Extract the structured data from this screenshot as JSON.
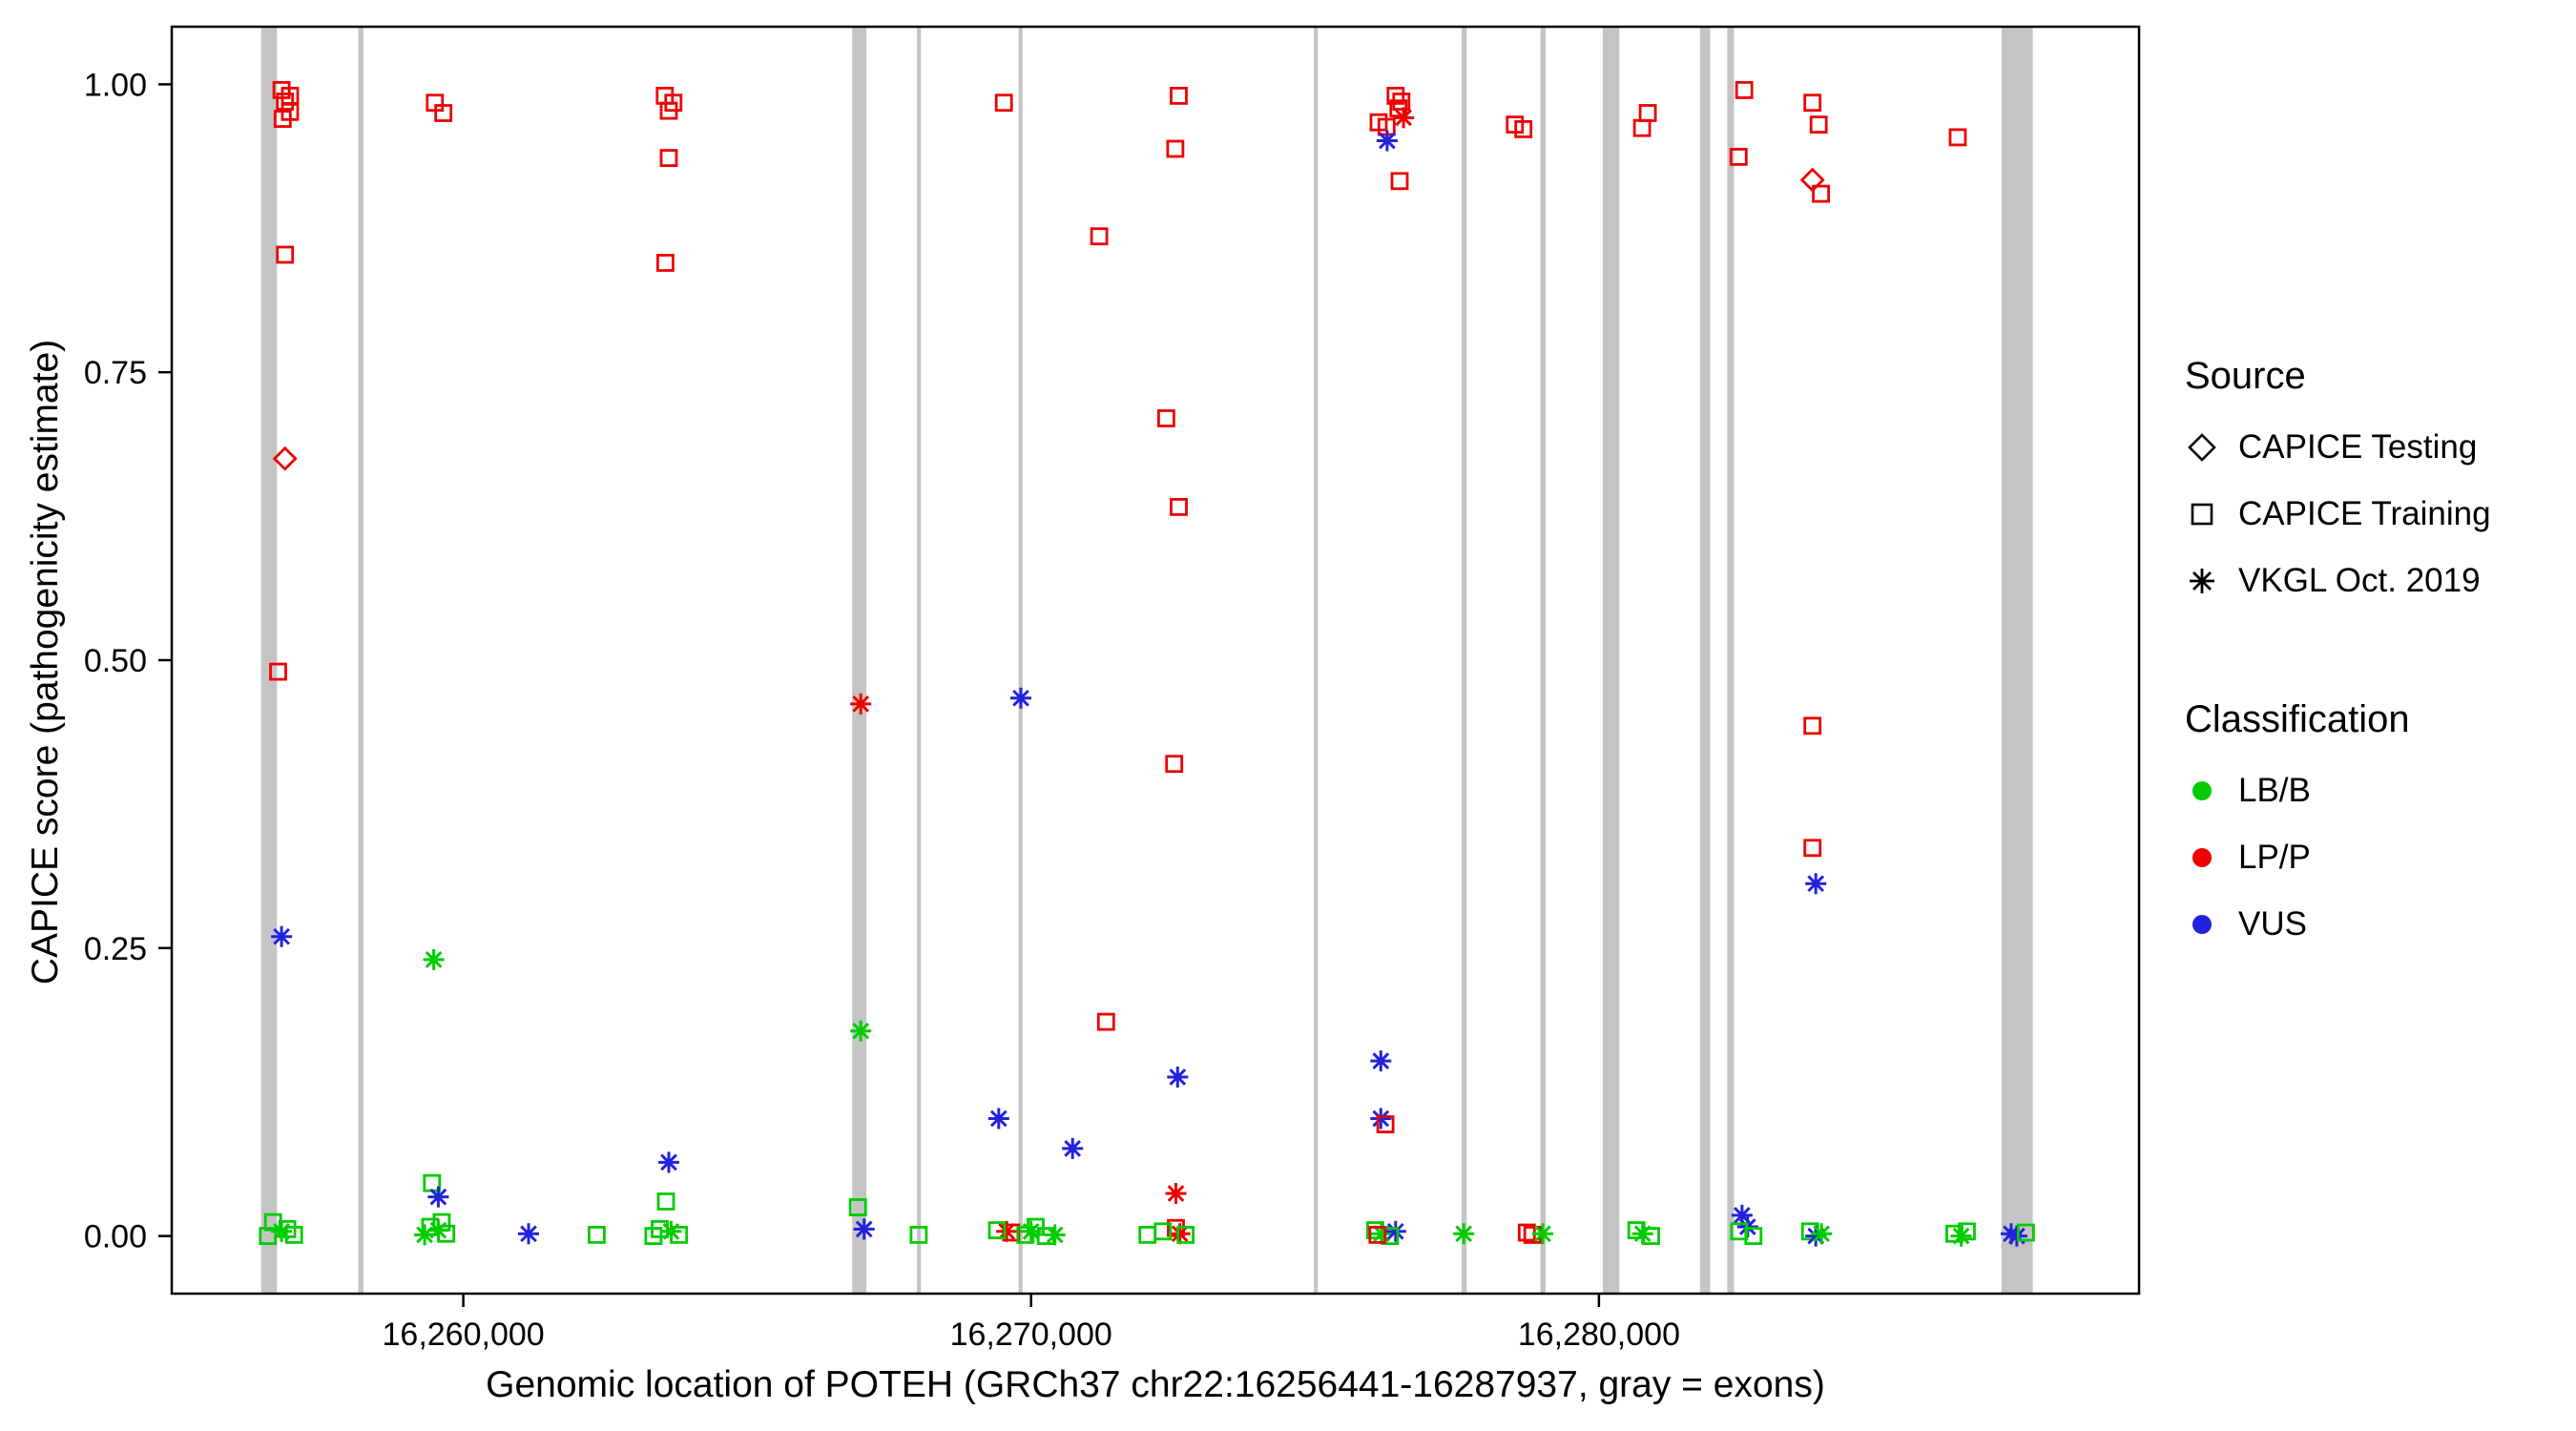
{
  "chart_data": {
    "type": "scatter",
    "title": "",
    "xlabel": "Genomic location of POTEH (GRCh37 chr22:16256441-16287937, gray = exons)",
    "ylabel": "CAPICE score (pathogenicity estimate)",
    "xlim": [
      16254866,
      16289512
    ],
    "ylim": [
      -0.05,
      1.05
    ],
    "x_ticks": [
      16260000,
      16270000,
      16280000
    ],
    "y_ticks": [
      0,
      0.25,
      0.5,
      0.75,
      1
    ],
    "grid": false,
    "colors": {
      "lb_b": "#00CC00",
      "lp_p": "#EE0000",
      "vus": "#2222DD",
      "exon": "#C4C4C4"
    },
    "shape_codes": {
      "sq": "CAPICE Training",
      "di": "CAPICE Testing",
      "as": "VKGL Oct. 2019"
    },
    "point_format": [
      "genomic_position",
      "capice_score",
      "shape",
      "classification"
    ],
    "exons": [
      [
        16256441,
        16256720
      ],
      [
        16258150,
        16258240
      ],
      [
        16266850,
        16267100
      ],
      [
        16267990,
        16268060
      ],
      [
        16269780,
        16269850
      ],
      [
        16274980,
        16275050
      ],
      [
        16277580,
        16277670
      ],
      [
        16278970,
        16279060
      ],
      [
        16280070,
        16280360
      ],
      [
        16281780,
        16281960
      ],
      [
        16282260,
        16282380
      ],
      [
        16287090,
        16287640
      ]
    ],
    "points": [
      [
        16256800,
        0.995,
        "sq",
        "LP/P"
      ],
      [
        16256950,
        0.99,
        "sq",
        "LP/P"
      ],
      [
        16256860,
        0.985,
        "sq",
        "LP/P"
      ],
      [
        16256950,
        0.976,
        "sq",
        "LP/P"
      ],
      [
        16256820,
        0.97,
        "sq",
        "LP/P"
      ],
      [
        16256860,
        0.852,
        "sq",
        "LP/P"
      ],
      [
        16256860,
        0.675,
        "di",
        "LP/P"
      ],
      [
        16256740,
        0.49,
        "sq",
        "LP/P"
      ],
      [
        16256800,
        0.26,
        "as",
        "VUS"
      ],
      [
        16256650,
        0.012,
        "sq",
        "LB/B"
      ],
      [
        16256900,
        0.006,
        "sq",
        "LB/B"
      ],
      [
        16256800,
        0.004,
        "as",
        "LB/B"
      ],
      [
        16256560,
        0.0,
        "sq",
        "LB/B"
      ],
      [
        16257020,
        0.001,
        "sq",
        "LB/B"
      ],
      [
        16259500,
        0.984,
        "sq",
        "LP/P"
      ],
      [
        16259650,
        0.975,
        "sq",
        "LP/P"
      ],
      [
        16259480,
        0.24,
        "as",
        "LB/B"
      ],
      [
        16259450,
        0.046,
        "sq",
        "LB/B"
      ],
      [
        16259560,
        0.034,
        "as",
        "VUS"
      ],
      [
        16259420,
        0.008,
        "sq",
        "LB/B"
      ],
      [
        16259560,
        0.005,
        "as",
        "LB/B"
      ],
      [
        16259700,
        0.002,
        "sq",
        "LB/B"
      ],
      [
        16259320,
        0.001,
        "as",
        "LB/B"
      ],
      [
        16259620,
        0.012,
        "sq",
        "LB/B"
      ],
      [
        16261150,
        0.002,
        "as",
        "VUS"
      ],
      [
        16263550,
        0.99,
        "sq",
        "LP/P"
      ],
      [
        16263700,
        0.984,
        "sq",
        "LP/P"
      ],
      [
        16263620,
        0.977,
        "sq",
        "LP/P"
      ],
      [
        16263620,
        0.936,
        "sq",
        "LP/P"
      ],
      [
        16263560,
        0.845,
        "sq",
        "LP/P"
      ],
      [
        16263620,
        0.064,
        "as",
        "VUS"
      ],
      [
        16263570,
        0.03,
        "sq",
        "LB/B"
      ],
      [
        16263460,
        0.006,
        "sq",
        "LB/B"
      ],
      [
        16263660,
        0.004,
        "as",
        "LB/B"
      ],
      [
        16263800,
        0.001,
        "sq",
        "LB/B"
      ],
      [
        16263350,
        0.0,
        "sq",
        "LB/B"
      ],
      [
        16262350,
        0.001,
        "sq",
        "LB/B"
      ],
      [
        16267000,
        0.462,
        "as",
        "LP/P"
      ],
      [
        16267000,
        0.178,
        "as",
        "LB/B"
      ],
      [
        16266950,
        0.025,
        "sq",
        "LB/B"
      ],
      [
        16267060,
        0.006,
        "as",
        "VUS"
      ],
      [
        16268020,
        0.001,
        "sq",
        "LB/B"
      ],
      [
        16269520,
        0.984,
        "sq",
        "LP/P"
      ],
      [
        16269820,
        0.467,
        "as",
        "VUS"
      ],
      [
        16269430,
        0.102,
        "as",
        "VUS"
      ],
      [
        16270730,
        0.076,
        "as",
        "VUS"
      ],
      [
        16269570,
        0.004,
        "as",
        "LP/P"
      ],
      [
        16269650,
        0.003,
        "sq",
        "LP/P"
      ],
      [
        16269400,
        0.005,
        "sq",
        "LB/B"
      ],
      [
        16269900,
        0.001,
        "sq",
        "LB/B"
      ],
      [
        16270080,
        0.008,
        "sq",
        "LB/B"
      ],
      [
        16270260,
        0.0,
        "sq",
        "LB/B"
      ],
      [
        16270000,
        0.004,
        "as",
        "LB/B"
      ],
      [
        16270420,
        0.001,
        "as",
        "LB/B"
      ],
      [
        16271200,
        0.868,
        "sq",
        "LP/P"
      ],
      [
        16271320,
        0.186,
        "sq",
        "LP/P"
      ],
      [
        16272600,
        0.99,
        "sq",
        "LP/P"
      ],
      [
        16272540,
        0.944,
        "sq",
        "LP/P"
      ],
      [
        16272380,
        0.71,
        "sq",
        "LP/P"
      ],
      [
        16272600,
        0.633,
        "sq",
        "LP/P"
      ],
      [
        16272520,
        0.41,
        "sq",
        "LP/P"
      ],
      [
        16272580,
        0.138,
        "as",
        "VUS"
      ],
      [
        16272550,
        0.037,
        "as",
        "LP/P"
      ],
      [
        16272550,
        0.007,
        "sq",
        "LP/P"
      ],
      [
        16272620,
        0.002,
        "as",
        "LP/P"
      ],
      [
        16272050,
        0.001,
        "sq",
        "LB/B"
      ],
      [
        16272320,
        0.004,
        "sq",
        "LB/B"
      ],
      [
        16272720,
        0.001,
        "sq",
        "LB/B"
      ],
      [
        16276120,
        0.967,
        "sq",
        "LP/P"
      ],
      [
        16276260,
        0.963,
        "sq",
        "LP/P"
      ],
      [
        16276560,
        0.971,
        "as",
        "LP/P"
      ],
      [
        16276420,
        0.99,
        "sq",
        "LP/P"
      ],
      [
        16276520,
        0.985,
        "sq",
        "LP/P"
      ],
      [
        16276470,
        0.979,
        "sq",
        "LP/P"
      ],
      [
        16276270,
        0.951,
        "as",
        "VUS"
      ],
      [
        16276490,
        0.916,
        "sq",
        "LP/P"
      ],
      [
        16276160,
        0.152,
        "as",
        "VUS"
      ],
      [
        16276160,
        0.102,
        "as",
        "VUS"
      ],
      [
        16276240,
        0.097,
        "sq",
        "LP/P"
      ],
      [
        16276060,
        0.005,
        "sq",
        "LB/B"
      ],
      [
        16276170,
        0.002,
        "as",
        "LB/B"
      ],
      [
        16276420,
        0.004,
        "as",
        "VUS"
      ],
      [
        16276320,
        0.0,
        "sq",
        "LB/B"
      ],
      [
        16276100,
        0.001,
        "sq",
        "LP/P"
      ],
      [
        16277620,
        0.002,
        "as",
        "LB/B"
      ],
      [
        16278520,
        0.965,
        "sq",
        "LP/P"
      ],
      [
        16278670,
        0.961,
        "sq",
        "LP/P"
      ],
      [
        16278730,
        0.003,
        "sq",
        "LP/P"
      ],
      [
        16278830,
        0.001,
        "sq",
        "LP/P"
      ],
      [
        16279010,
        0.002,
        "as",
        "LB/B"
      ],
      [
        16280860,
        0.975,
        "sq",
        "LP/P"
      ],
      [
        16280760,
        0.962,
        "sq",
        "LP/P"
      ],
      [
        16280660,
        0.005,
        "sq",
        "LB/B"
      ],
      [
        16280770,
        0.002,
        "as",
        "LB/B"
      ],
      [
        16280920,
        0.0,
        "sq",
        "LB/B"
      ],
      [
        16282560,
        0.995,
        "sq",
        "LP/P"
      ],
      [
        16282460,
        0.937,
        "sq",
        "LP/P"
      ],
      [
        16282520,
        0.018,
        "as",
        "VUS"
      ],
      [
        16282620,
        0.008,
        "as",
        "VUS"
      ],
      [
        16282470,
        0.004,
        "sq",
        "LB/B"
      ],
      [
        16282720,
        0.0,
        "sq",
        "LB/B"
      ],
      [
        16283760,
        0.984,
        "sq",
        "LP/P"
      ],
      [
        16283870,
        0.965,
        "sq",
        "LP/P"
      ],
      [
        16283760,
        0.917,
        "di",
        "LP/P"
      ],
      [
        16283910,
        0.905,
        "sq",
        "LP/P"
      ],
      [
        16283760,
        0.443,
        "sq",
        "LP/P"
      ],
      [
        16283760,
        0.337,
        "sq",
        "LP/P"
      ],
      [
        16283820,
        0.306,
        "as",
        "VUS"
      ],
      [
        16283720,
        0.004,
        "sq",
        "LB/B"
      ],
      [
        16283820,
        0.0,
        "as",
        "VUS"
      ],
      [
        16283920,
        0.002,
        "as",
        "LB/B"
      ],
      [
        16286320,
        0.954,
        "sq",
        "LP/P"
      ],
      [
        16286260,
        0.002,
        "sq",
        "LB/B"
      ],
      [
        16286380,
        0.0,
        "as",
        "LB/B"
      ],
      [
        16286480,
        0.004,
        "sq",
        "LB/B"
      ],
      [
        16287260,
        0.002,
        "as",
        "VUS"
      ],
      [
        16287360,
        0.0,
        "as",
        "VUS"
      ],
      [
        16287520,
        0.003,
        "sq",
        "LB/B"
      ]
    ]
  },
  "legend": {
    "source_title": "Source",
    "source_items": [
      {
        "label": "CAPICE Testing",
        "shape": "diamond"
      },
      {
        "label": "CAPICE Training",
        "shape": "square"
      },
      {
        "label": "VKGL Oct. 2019",
        "shape": "asterisk"
      }
    ],
    "class_title": "Classification",
    "class_items": [
      {
        "label": "LB/B",
        "color": "#00CC00"
      },
      {
        "label": "LP/P",
        "color": "#EE0000"
      },
      {
        "label": "VUS",
        "color": "#2222DD"
      }
    ]
  }
}
